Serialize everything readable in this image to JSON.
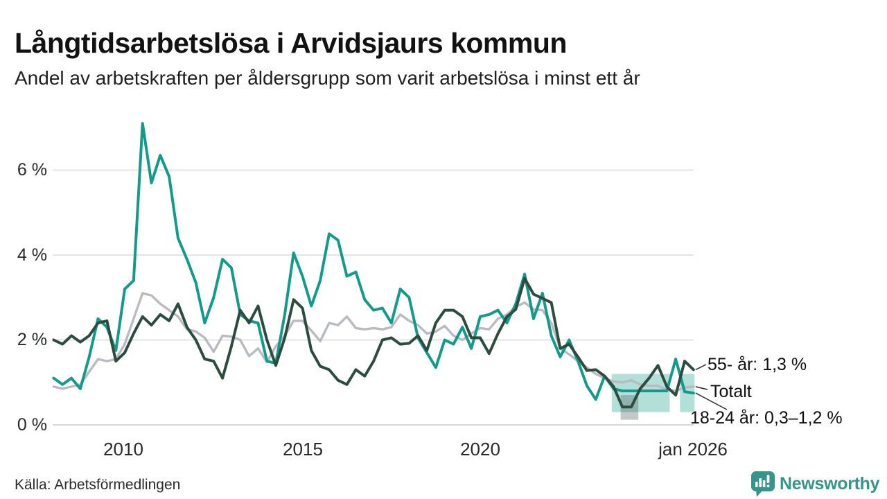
{
  "branding": {
    "name": "Newsworthy"
  },
  "chart_data": {
    "type": "line",
    "title": "Långtidsarbetslösa i Arvidsjaurs kommun",
    "subtitle": "Andel av arbetskraften per åldersgrupp som varit arbetslösa i minst ett år",
    "source": "Källa: Arbetsförmedlingen",
    "grid": true,
    "legend_position": "end-of-line-labels",
    "x_range": [
      2008,
      2026.05
    ],
    "y_range": [
      0,
      7.3
    ],
    "x_axis": {
      "ticks": [
        {
          "label": "2010",
          "year": 2010
        },
        {
          "label": "2015",
          "year": 2015
        },
        {
          "label": "2020",
          "year": 2020
        },
        {
          "label": "jan 2026",
          "year": 2026
        }
      ]
    },
    "y_axis": {
      "ticks": [
        {
          "label": "6 %",
          "value": 6
        },
        {
          "label": "4 %",
          "value": 4
        },
        {
          "label": "2 %",
          "value": 2
        },
        {
          "label": "0 %",
          "value": 0
        }
      ]
    },
    "style": {
      "grid_line": "#e4e4e5",
      "zero_line": "#d6d6d8",
      "connector": "#2a2a2a",
      "axis_text": "#26282b",
      "accent_teal": "#149a8a",
      "accent_dark_green": "#2d4b3f",
      "accent_gray": "#b9bac2",
      "brand_teal": "#35948b"
    },
    "series": [
      {
        "name": "Totalt",
        "slug": "totalt",
        "color": "#b9bac2",
        "width": 3.4,
        "x_start": 2008,
        "x_step": 0.25,
        "values": [
          0.9,
          0.85,
          0.9,
          0.95,
          1.25,
          1.55,
          1.5,
          1.55,
          1.9,
          2.5,
          3.1,
          3.05,
          2.85,
          2.7,
          2.55,
          2.25,
          2.2,
          2.05,
          1.72,
          2.1,
          2.08,
          2.0,
          1.62,
          1.8,
          1.48,
          1.85,
          2.1,
          2.45,
          2.45,
          2.22,
          1.97,
          2.4,
          2.35,
          2.55,
          2.28,
          2.25,
          2.28,
          2.25,
          2.3,
          2.6,
          2.45,
          2.35,
          2.15,
          2.2,
          2.33,
          2.1,
          2.0,
          2.15,
          2.28,
          2.25,
          2.5,
          2.6,
          2.78,
          2.88,
          2.72,
          2.7,
          2.4,
          1.8,
          1.66,
          1.5,
          1.35,
          1.2,
          1.1,
          1.02,
          1.0,
          1.05,
          0.95,
          0.92,
          0.92,
          0.82,
          0.8,
          0.88,
          0.9
        ]
      },
      {
        "name": "18-24 år",
        "slug": "18-24-ar",
        "color": "#149a8a",
        "width": 4,
        "x_start": 2008,
        "x_step": 0.25,
        "values": [
          1.1,
          0.95,
          1.1,
          0.85,
          1.6,
          2.5,
          2.3,
          1.75,
          3.2,
          3.4,
          7.1,
          5.7,
          6.35,
          5.85,
          4.4,
          3.9,
          3.35,
          2.4,
          3.0,
          3.9,
          3.7,
          2.6,
          2.45,
          2.4,
          1.5,
          1.45,
          2.6,
          4.05,
          3.5,
          2.8,
          3.4,
          4.5,
          4.35,
          3.5,
          3.6,
          2.95,
          2.7,
          2.75,
          2.4,
          3.2,
          3.0,
          2.05,
          1.7,
          1.35,
          2.0,
          1.9,
          2.3,
          1.8,
          2.55,
          2.6,
          2.7,
          2.4,
          2.85,
          3.55,
          2.5,
          3.1,
          2.1,
          1.6,
          2.0,
          1.5,
          0.92,
          0.6,
          1.15,
          0.85,
          0.8,
          0.8,
          0.8,
          0.8,
          0.8,
          0.8,
          1.55,
          0.78,
          0.75
        ]
      },
      {
        "name": "55- år",
        "slug": "55-ar",
        "color": "#2d4b3f",
        "width": 4,
        "x_start": 2008,
        "x_step": 0.25,
        "values": [
          2.0,
          1.9,
          2.1,
          1.95,
          2.1,
          2.4,
          2.45,
          1.5,
          1.7,
          2.15,
          2.55,
          2.35,
          2.6,
          2.45,
          2.85,
          2.3,
          2.0,
          1.55,
          1.5,
          1.1,
          1.85,
          2.7,
          2.4,
          2.8,
          2.0,
          1.4,
          2.05,
          2.95,
          2.75,
          1.75,
          1.38,
          1.3,
          1.05,
          0.95,
          1.3,
          1.15,
          1.5,
          2.0,
          2.05,
          1.9,
          1.92,
          2.1,
          1.75,
          2.4,
          2.7,
          2.7,
          2.55,
          2.05,
          2.05,
          1.68,
          2.15,
          2.55,
          2.72,
          3.45,
          3.08,
          2.98,
          2.88,
          1.8,
          1.9,
          1.6,
          1.28,
          1.3,
          1.15,
          0.9,
          0.42,
          0.42,
          0.85,
          1.1,
          1.4,
          0.9,
          0.7,
          1.5,
          1.3
        ]
      }
    ],
    "bands": [
      {
        "series": "18-24 år",
        "low": 0.3,
        "high": 1.2,
        "segments": [
          [
            2023.7,
            2025.33
          ],
          [
            2025.62,
            2026.03
          ]
        ],
        "color": "#149a8a",
        "opacity": 0.32
      },
      {
        "series": "55- år",
        "low": 0.12,
        "high": 0.7,
        "segments": [
          [
            2023.95,
            2024.45
          ]
        ],
        "color": "#55605b",
        "opacity": 0.35
      }
    ],
    "annotations": [
      {
        "text": "55- år: 1,3 %",
        "series": "55- år",
        "anchor_year": 2026,
        "anchor_value": 1.3
      },
      {
        "text": "Totalt",
        "series": "Totalt",
        "anchor_year": 2026,
        "anchor_value": 0.9
      },
      {
        "text": "18-24 år: 0,3–1,2 %",
        "series": "18-24 år",
        "anchor_year": 2026,
        "anchor_value": 0.75
      }
    ]
  }
}
